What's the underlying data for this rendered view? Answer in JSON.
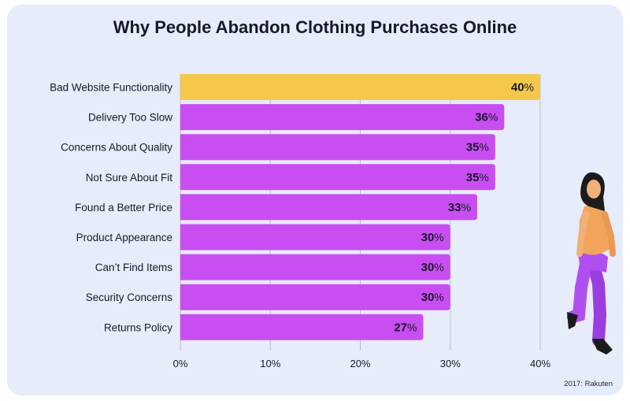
{
  "chart_data": {
    "type": "bar",
    "orientation": "horizontal",
    "title": "Why People Abandon Clothing Purchases Online",
    "categories": [
      "Bad Website Functionality",
      "Delivery Too Slow",
      "Concerns About Quality",
      "Not Sure About Fit",
      "Found a Better Price",
      "Product Appearance",
      "Can’t Find Items",
      "Security Concerns",
      "Returns Policy"
    ],
    "values": [
      40,
      36,
      35,
      35,
      33,
      30,
      30,
      30,
      27
    ],
    "value_suffix": "%",
    "xticks": [
      "0%",
      "10%",
      "20%",
      "30%",
      "40%"
    ],
    "xlim": [
      0,
      40
    ],
    "grid": true,
    "highlight_index": 0,
    "colors": {
      "highlight": "#f5c84c",
      "bar": "#c94ef1",
      "grid": "#b9bfd0",
      "text": "#17182b"
    }
  },
  "source": "2017: Rakuten"
}
